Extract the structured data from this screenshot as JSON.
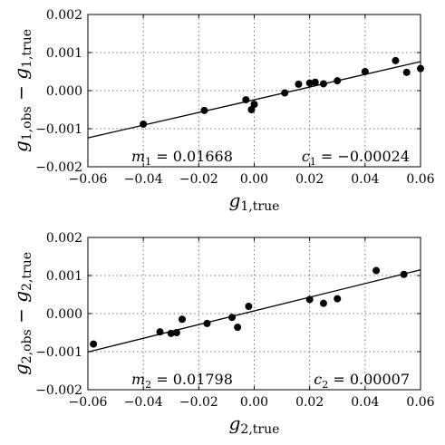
{
  "chart_data": [
    {
      "type": "scatter",
      "xlabel": {
        "main": "g",
        "sub": "1,true"
      },
      "ylabel": {
        "main": "g",
        "sub1": "1,obs",
        "op": "−",
        "main2": "g",
        "sub2": "1,true"
      },
      "xlim": [
        -0.06,
        0.06
      ],
      "ylim": [
        -0.002,
        0.002
      ],
      "xticks": [
        "−0.06",
        "−0.04",
        "−0.02",
        "0.00",
        "0.02",
        "0.04",
        "0.06"
      ],
      "yticks": [
        "−0.002",
        "−0.001",
        "0.000",
        "0.001",
        "0.002"
      ],
      "grid": true,
      "points": [
        {
          "x": -0.04,
          "y": -0.00088
        },
        {
          "x": -0.018,
          "y": -0.00052
        },
        {
          "x": -0.003,
          "y": -0.00024
        },
        {
          "x": -0.001,
          "y": -0.0005
        },
        {
          "x": 0.0,
          "y": -0.00036
        },
        {
          "x": 0.011,
          "y": -6e-05
        },
        {
          "x": 0.016,
          "y": 0.00017
        },
        {
          "x": 0.02,
          "y": 0.0002
        },
        {
          "x": 0.022,
          "y": 0.00022
        },
        {
          "x": 0.025,
          "y": 0.00018
        },
        {
          "x": 0.03,
          "y": 0.00026
        },
        {
          "x": 0.04,
          "y": 0.0005
        },
        {
          "x": 0.051,
          "y": 0.00079
        },
        {
          "x": 0.055,
          "y": 0.00048
        },
        {
          "x": 0.06,
          "y": 0.00058
        }
      ],
      "fit": {
        "slope": 0.01668,
        "intercept": -0.00024
      },
      "annotations": {
        "m_sym": "m",
        "m_sub": "1",
        "m_value": " = 0.01668",
        "c_sym": "c",
        "c_sub": "1",
        "c_value": " = −0.00024"
      }
    },
    {
      "type": "scatter",
      "xlabel": {
        "main": "g",
        "sub": "2,true"
      },
      "ylabel": {
        "main": "g",
        "sub1": "2,obs",
        "op": "−",
        "main2": "g",
        "sub2": "2,true"
      },
      "xlim": [
        -0.06,
        0.06
      ],
      "ylim": [
        -0.002,
        0.002
      ],
      "xticks": [
        "−0.06",
        "−0.04",
        "−0.02",
        "0.00",
        "0.02",
        "0.04",
        "0.06"
      ],
      "yticks": [
        "−0.002",
        "−0.001",
        "0.000",
        "0.001",
        "0.002"
      ],
      "grid": true,
      "points": [
        {
          "x": -0.058,
          "y": -0.0008
        },
        {
          "x": -0.034,
          "y": -0.00048
        },
        {
          "x": -0.03,
          "y": -0.00052
        },
        {
          "x": -0.028,
          "y": -0.0005
        },
        {
          "x": -0.026,
          "y": -0.00015
        },
        {
          "x": -0.017,
          "y": -0.00026
        },
        {
          "x": -0.008,
          "y": -0.0001
        },
        {
          "x": -0.006,
          "y": -0.00036
        },
        {
          "x": -0.002,
          "y": 0.00019
        },
        {
          "x": 0.02,
          "y": 0.00037
        },
        {
          "x": 0.025,
          "y": 0.00027
        },
        {
          "x": 0.03,
          "y": 0.00039
        },
        {
          "x": 0.044,
          "y": 0.00113
        },
        {
          "x": 0.054,
          "y": 0.00103
        }
      ],
      "fit": {
        "slope": 0.01798,
        "intercept": 7e-05
      },
      "annotations": {
        "m_sym": "m",
        "m_sub": "2",
        "m_value": " = 0.01798",
        "c_sym": "c",
        "c_sub": "2",
        "c_value": " = 0.00007"
      }
    }
  ]
}
